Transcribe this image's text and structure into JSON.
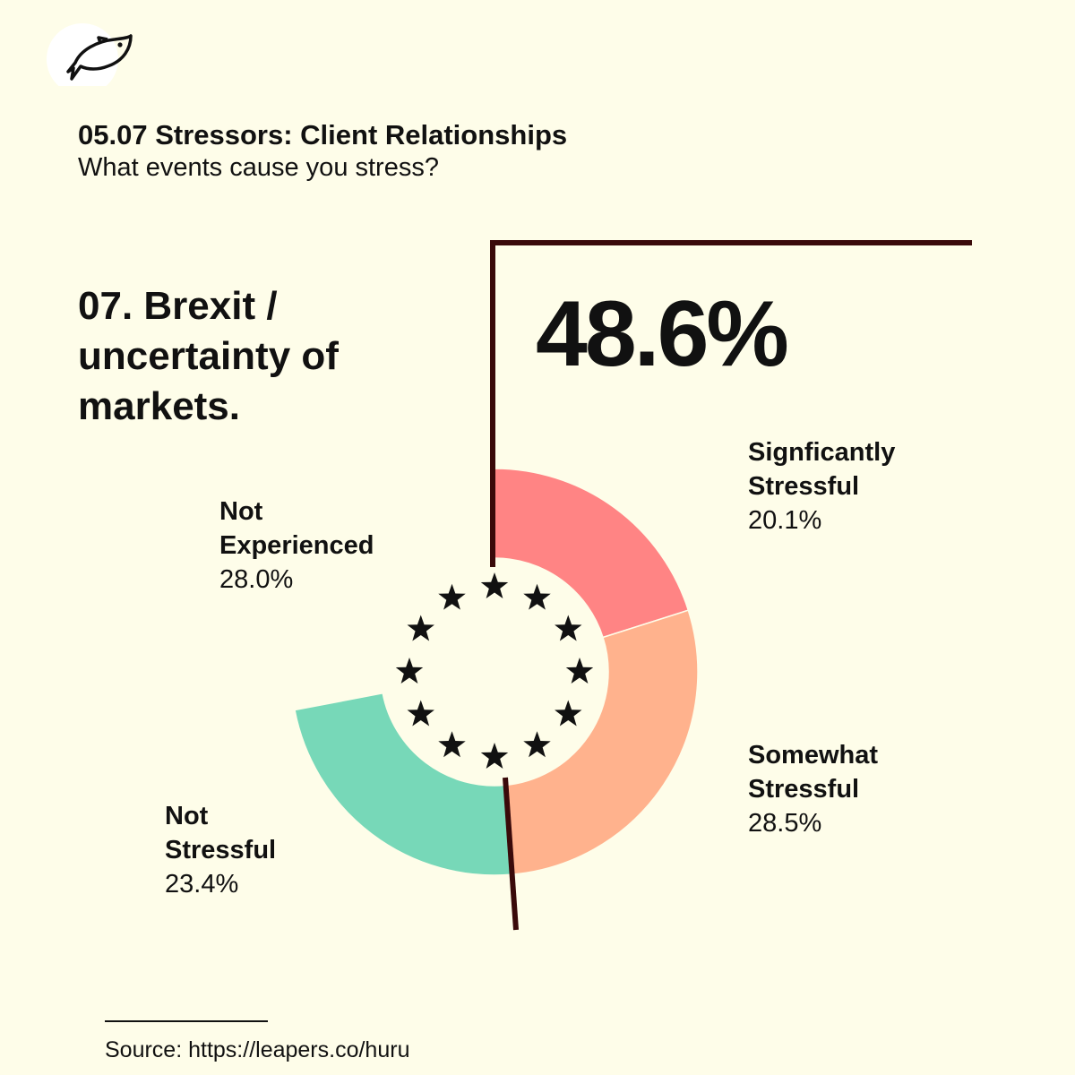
{
  "header": {
    "code_title": "05.07 Stressors: Client Relationships",
    "subtitle": "What events cause you stress?"
  },
  "question": {
    "line1": "07. Brexit /",
    "line2": "uncertainty of",
    "line3": "markets."
  },
  "headline_value": "48.6%",
  "source": "Source: https://leapers.co/huru",
  "icons": {
    "logo": "fish-icon",
    "center": "eu-stars-ring"
  },
  "colors": {
    "background": "#fefde9",
    "significantly": "#ff8484",
    "somewhat": "#ffb28d",
    "not_stressful": "#77d8b8",
    "bracket": "#3a0a0a",
    "stars": "#111111"
  },
  "chart_data": {
    "type": "pie",
    "variant": "donut",
    "categories": [
      "Signficantly Stressful",
      "Somewhat Stressful",
      "Not Stressful",
      "Not Experienced"
    ],
    "values": [
      20.1,
      28.5,
      23.4,
      28.0
    ],
    "labels": [
      {
        "name_line1": "Signficantly",
        "name_line2": "Stressful",
        "value_text": "20.1%"
      },
      {
        "name_line1": "Somewhat",
        "name_line2": "Stressful",
        "value_text": "28.5%"
      },
      {
        "name_line1": "Not",
        "name_line2": "Stressful",
        "value_text": "23.4%"
      },
      {
        "name_line1": "Not",
        "name_line2": "Experienced",
        "value_text": "28.0%"
      }
    ],
    "highlight": {
      "value_text": "48.6%",
      "covers": [
        "Signficantly Stressful",
        "Somewhat Stressful"
      ]
    }
  }
}
